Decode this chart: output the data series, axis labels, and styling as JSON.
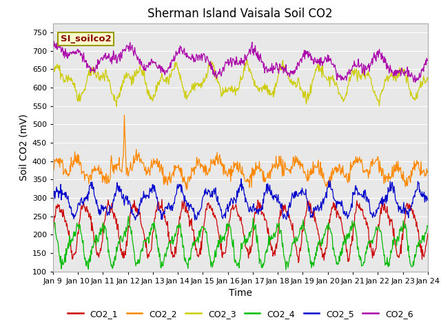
{
  "title": "Sherman Island Vaisala Soil CO2",
  "xlabel": "Time",
  "ylabel": "Soil CO2 (mV)",
  "annotation": "SI_soilco2",
  "ylim": [
    100,
    775
  ],
  "yticks": [
    100,
    150,
    200,
    250,
    300,
    350,
    400,
    450,
    500,
    550,
    600,
    650,
    700,
    750
  ],
  "x_labels": [
    "Jan 9",
    "Jan 10",
    "Jan 11",
    "Jan 12",
    "Jan 13",
    "Jan 14",
    "Jan 15",
    "Jan 16",
    "Jan 17",
    "Jan 18",
    "Jan 19",
    "Jan 20",
    "Jan 21",
    "Jan 22",
    "Jan 23",
    "Jan 24"
  ],
  "colors": {
    "CO2_1": "#cc0000",
    "CO2_2": "#ff8800",
    "CO2_3": "#cccc00",
    "CO2_4": "#00bb00",
    "CO2_5": "#0000cc",
    "CO2_6": "#aa00aa"
  },
  "background_color": "#e8e8e8",
  "annotation_bg": "#ffffcc",
  "annotation_border": "#999900",
  "annotation_text_color": "#880000",
  "title_fontsize": 12,
  "axis_label_fontsize": 10,
  "tick_fontsize": 8,
  "legend_fontsize": 9,
  "linewidth": 0.9,
  "n_points": 720
}
